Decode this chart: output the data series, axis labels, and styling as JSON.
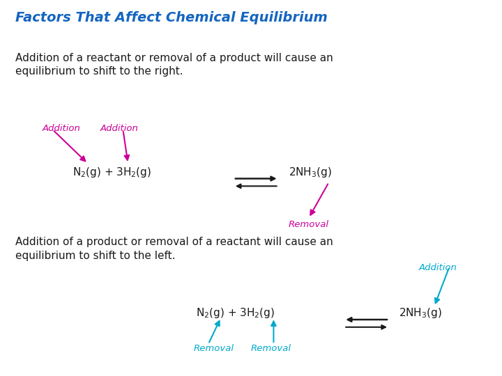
{
  "title": "Factors That Affect Chemical Equilibrium",
  "title_color": "#1565C0",
  "title_fontsize": 14,
  "bg_color": "#ffffff",
  "text1": "Addition of a reactant or removal of a product will cause an\nequilibrium to shift to the right.",
  "text2": "Addition of a product or removal of a reactant will cause an\nequilibrium to shift to the left.",
  "magenta": "#CC0099",
  "cyan": "#00AACC",
  "black": "#1a1a1a",
  "eq1_reactant": "N$_2$(g) + 3H$_2$(g)",
  "eq1_product": "2NH$_3$(g)",
  "eq2_reactant": "N$_2$(g) + 3H$_2$(g)",
  "eq2_product": "2NH$_3$(g)"
}
